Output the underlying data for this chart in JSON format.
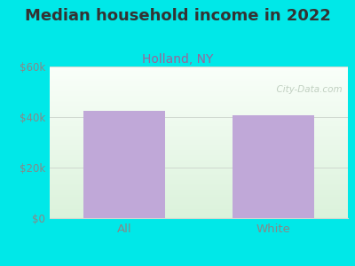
{
  "title": "Median household income in 2022",
  "subtitle": "Holland, NY",
  "categories": [
    "All",
    "White"
  ],
  "values": [
    42500,
    40800
  ],
  "bar_color": "#c0a8d8",
  "ylim": [
    0,
    60000
  ],
  "yticks": [
    0,
    20000,
    40000,
    60000
  ],
  "ytick_labels": [
    "$0",
    "$20k",
    "$40k",
    "$60k"
  ],
  "background_color": "#00e8e8",
  "plot_bg_top": "#f5faf5",
  "plot_bg_bottom": "#dff0df",
  "title_fontsize": 13,
  "subtitle_fontsize": 10,
  "title_color": "#333333",
  "subtitle_color": "#996699",
  "tick_color": "#888888",
  "xtick_color": "#888888",
  "watermark": "  City-Data.com",
  "grid_color": "#d0d8d0"
}
